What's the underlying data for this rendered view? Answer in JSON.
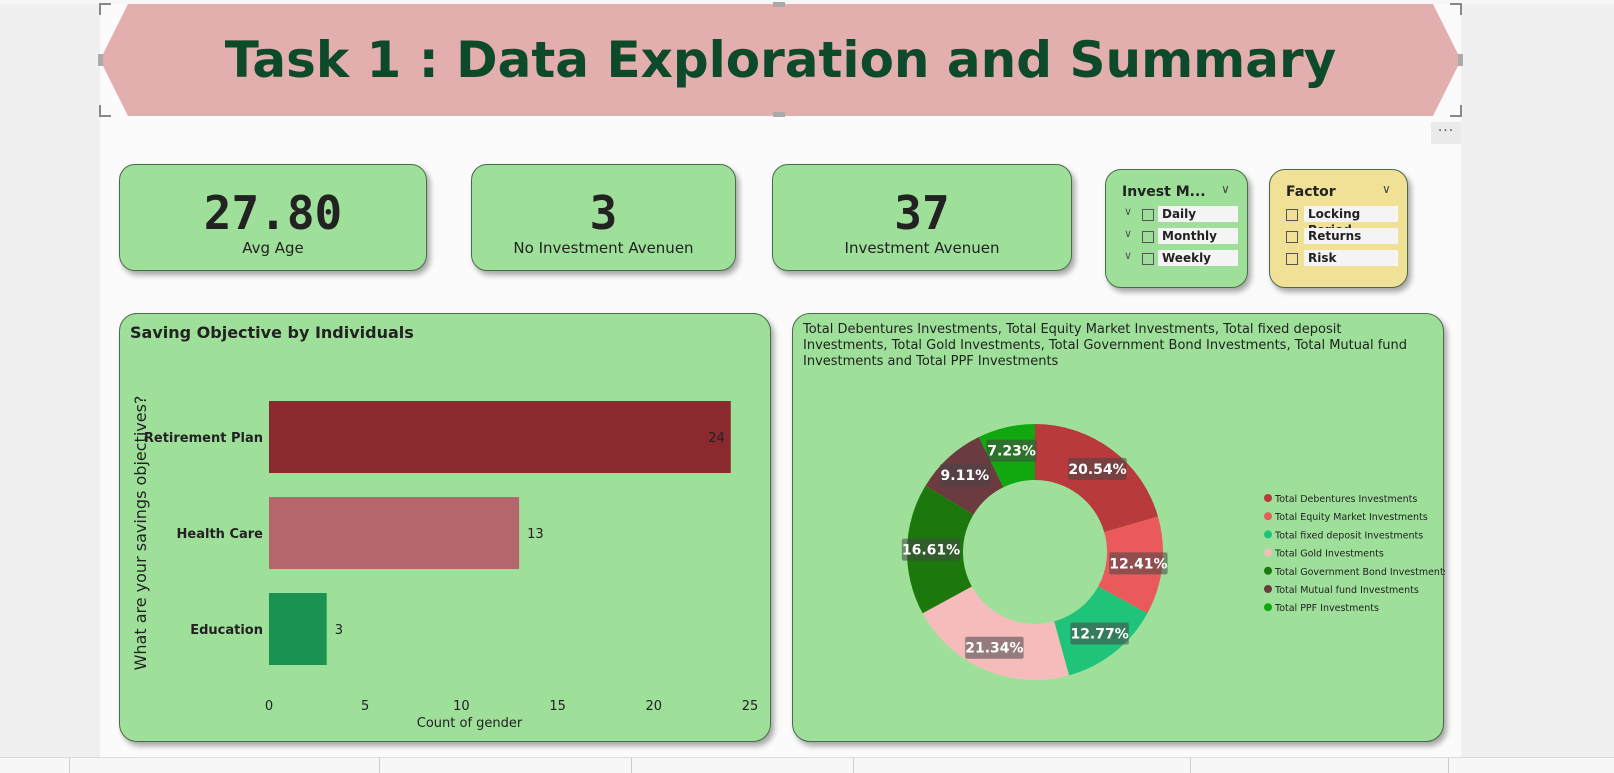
{
  "banner": {
    "title": "Task 1 : Data Exploration and Summary",
    "bg_color": "#e3aeae",
    "text_color": "#0c4a2a"
  },
  "kpis": [
    {
      "value": "27.80",
      "label": "Avg Age"
    },
    {
      "value": "3",
      "label": "No Investment Avenuen"
    },
    {
      "value": "37",
      "label": "Investment Avenuen"
    }
  ],
  "slicers": {
    "invest_monitor": {
      "title": "Invest M...",
      "options": [
        "Daily",
        "Monthly",
        "Weekly"
      ],
      "bg_color": "#9ee09a"
    },
    "factor": {
      "title": "Factor",
      "options": [
        "Locking Period",
        "Returns",
        "Risk"
      ],
      "bg_color": "#f0e196"
    }
  },
  "more_menu": {
    "icon": "ellipsis-icon",
    "glyph": "···"
  },
  "bar_panel": {
    "title": "Saving Objective by Individuals",
    "chart_data": {
      "type": "bar",
      "orientation": "horizontal",
      "categories": [
        "Retirement Plan",
        "Health Care",
        "Education"
      ],
      "values": [
        24,
        13,
        3
      ],
      "colors": [
        "#8a2a2e",
        "#b5666c",
        "#1a9350"
      ],
      "xlabel": "Count of gender",
      "ylabel": "What are your savings objectives?",
      "xlim": [
        0,
        25
      ],
      "xticks": [
        0,
        5,
        10,
        15,
        20,
        25
      ],
      "grid": false,
      "data_labels": true
    }
  },
  "donut_panel": {
    "title": "Total Debentures Investments, Total Equity Market Investments, Total fixed deposit Investments, Total Gold Investments, Total Government Bond Investments, Total Mutual fund Investments and Total PPF Investments",
    "chart_data": {
      "type": "pie",
      "style": "donut",
      "series": [
        {
          "name": "Total Debentures Investments",
          "value": 20.54,
          "label": "20.54%",
          "color": "#b83a3c"
        },
        {
          "name": "Total Equity Market Investments",
          "value": 12.41,
          "label": "12.41%",
          "color": "#ea5a5a"
        },
        {
          "name": "Total fixed deposit Investments",
          "value": 12.77,
          "label": "12.77%",
          "color": "#1fc47a"
        },
        {
          "name": "Total Gold Investments",
          "value": 21.34,
          "label": "21.34%",
          "color": "#f6bcbc"
        },
        {
          "name": "Total Government Bond Investments",
          "value": 16.61,
          "label": "16.61%",
          "color": "#1c780c"
        },
        {
          "name": "Total Mutual fund Investments",
          "value": 9.11,
          "label": "9.11%",
          "color": "#6b3b40"
        },
        {
          "name": "Total PPF Investments",
          "value": 7.23,
          "label": "7.23%",
          "color": "#10a80e"
        }
      ],
      "legend_position": "right"
    }
  }
}
